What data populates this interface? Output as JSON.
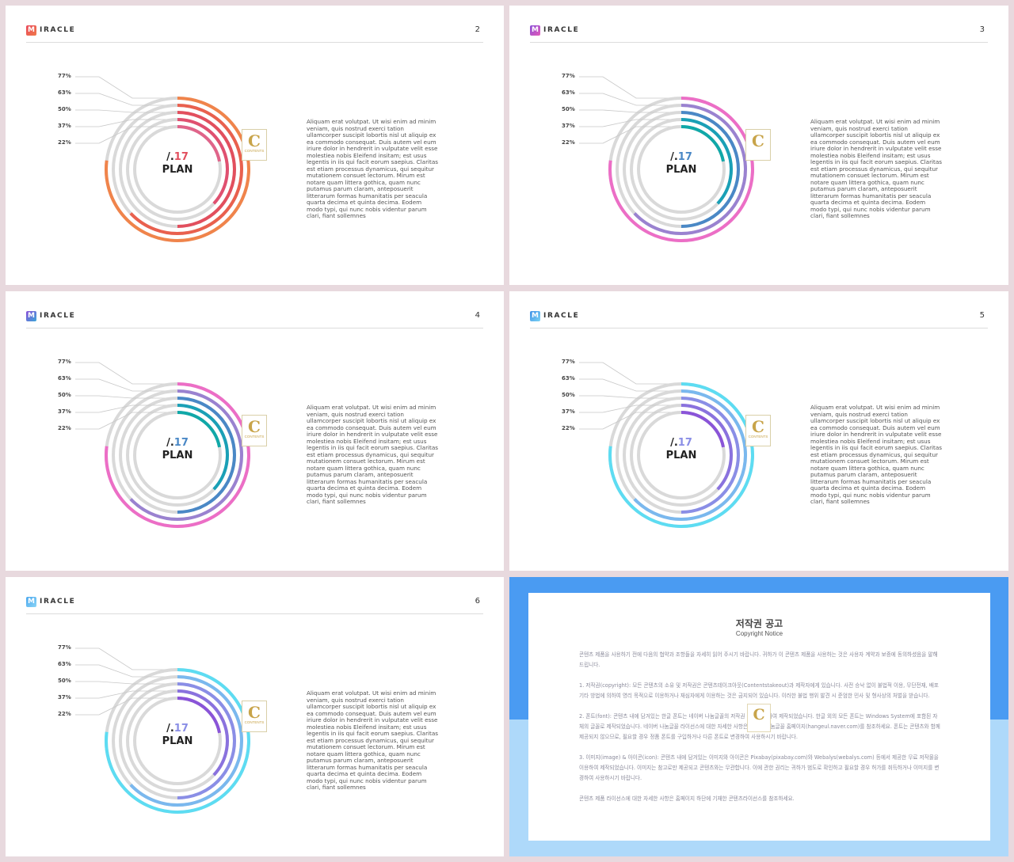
{
  "slides": [
    {
      "brand": "IRACLE",
      "logo_letter": "M",
      "page": "2",
      "center_number": "17",
      "center_label": "PLAN",
      "logo_color": "#e9485b",
      "body": "Aliquam erat volutpat. Ut wisi enim ad minim veniam, quis nostrud exerci tation ullamcorper suscipit lobortis nisl ut aliquip ex ea commodo consequat. Duis autem vel eum iriure dolor in hendrerit in vulputate velit esse molestiea nobis Eleifend insitam; est usus legentis in iis qui facit eorum saepius. Claritas est etiam processus dynamicus, qui sequitur mutationem consuet lectorum. Mirum est notare quam littera gothica, quam nunc putamus parum claram, anteposuerit litterarum formas humanitatis per seacula quarta decima et quinta decima. Eodem modo typi, qui nunc nobis videntur parum clari, fiant sollemnes",
      "stamp_letter": "C",
      "stamp_text": "CONTENTS"
    },
    {
      "brand": "IRACLE",
      "logo_letter": "M",
      "page": "3",
      "center_number": "17",
      "center_label": "PLAN",
      "logo_color": "#8a4fd8",
      "body": "Aliquam erat volutpat. Ut wisi enim ad minim veniam, quis nostrud exerci tation ullamcorper suscipit lobortis nisl ut aliquip ex ea commodo consequat. Duis autem vel eum iriure dolor in hendrerit in vulputate velit esse molestiea nobis Eleifend insitam; est usus legentis in iis qui facit eorum saepius. Claritas est etiam processus dynamicus, qui sequitur mutationem consuet lectorum. Mirum est notare quam littera gothica, quam nunc putamus parum claram, anteposuerit litterarum formas humanitatis per seacula quarta decima et quinta decima. Eodem modo typi, qui nunc nobis videntur parum clari, fiant sollemnes",
      "stamp_letter": "C",
      "stamp_text": ""
    },
    {
      "brand": "IRACLE",
      "logo_letter": "M",
      "page": "4",
      "center_number": "17",
      "center_label": "PLAN",
      "logo_color": "#8a4fd8",
      "body": "Aliquam erat volutpat. Ut wisi enim ad minim veniam, quis nostrud exerci tation ullamcorper suscipit lobortis nisl ut aliquip ex ea commodo consequat. Duis autem vel eum iriure dolor in hendrerit in vulputate velit esse molestiea nobis Eleifend insitam; est usus legentis in iis qui facit eorum saepius. Claritas est etiam processus dynamicus, qui sequitur mutationem consuet lectorum. Mirum est notare quam littera gothica, quam nunc putamus parum claram, anteposuerit litterarum formas humanitatis per seacula quarta decima et quinta decima. Eodem modo typi, qui nunc nobis videntur parum clari, fiant sollemnes",
      "stamp_letter": "C",
      "stamp_text": "CONTENTS"
    },
    {
      "brand": "IRACLE",
      "logo_letter": "M",
      "page": "5",
      "center_number": "17",
      "center_label": "PLAN",
      "logo_color": "#3f8fe6",
      "body": "Aliquam erat volutpat. Ut wisi enim ad minim veniam, quis nostrud exerci tation ullamcorper suscipit lobortis nisl ut aliquip ex ea commodo consequat. Duis autem vel eum iriure dolor in hendrerit in vulputate velit esse molestiea nobis Eleifend insitam; est usus legentis in iis qui facit eorum saepius. Claritas est etiam processus dynamicus, qui sequitur mutationem consuet lectorum. Mirum est notare quam littera gothica, quam nunc putamus parum claram, anteposuerit litterarum formas humanitatis per seacula quarta decima et quinta decima. Eodem modo typi, qui nunc nobis videntur parum clari, fiant sollemnes",
      "stamp_letter": "C",
      "stamp_text": "CONTENTS"
    },
    {
      "brand": "IRACLE",
      "logo_letter": "M",
      "page": "6",
      "center_number": "17",
      "center_label": "PLAN",
      "logo_color": "#4aa7ee",
      "body": "Aliquam erat volutpat. Ut wisi enim ad minim veniam, quis nostrud exerci tation ullamcorper suscipit lobortis nisl ut aliquip ex ea commodo consequat. Duis autem vel eum iriure dolor in hendrerit in vulputate velit esse molestiea nobis Eleifend insitam; est usus legentis in iis qui facit eorum saepius. Claritas est etiam processus dynamicus, qui sequitur mutationem consuet lectorum. Mirum est notare quam littera gothica, quam nunc putamus parum claram, anteposuerit litterarum formas humanitatis per seacula quarta decima et quinta decima. Eodem modo typi, qui nunc nobis videntur parum clari, fiant sollemnes",
      "stamp_letter": "C",
      "stamp_text": "CONTENTS"
    }
  ],
  "chart_data": [
    {
      "type": "radial-bar",
      "slide": "2",
      "categories": [
        "77%",
        "63%",
        "50%",
        "37%",
        "22%"
      ],
      "values": [
        77,
        63,
        50,
        37,
        22
      ],
      "colors": [
        "#f0844b",
        "#e9604e",
        "#e24f5e",
        "#e05070",
        "#e0648a"
      ],
      "track_color": "#d9d9d9"
    },
    {
      "type": "radial-bar",
      "slide": "3",
      "categories": [
        "77%",
        "63%",
        "50%",
        "37%",
        "22%"
      ],
      "values": [
        77,
        63,
        50,
        37,
        22
      ],
      "colors": [
        "#ec6ec6",
        "#9a82d0",
        "#4a88c6",
        "#1aa0b6",
        "#10a8a8"
      ],
      "track_color": "#d9d9d9"
    },
    {
      "type": "radial-bar",
      "slide": "4",
      "categories": [
        "77%",
        "63%",
        "50%",
        "37%",
        "22%"
      ],
      "values": [
        77,
        63,
        50,
        37,
        22
      ],
      "colors": [
        "#ec6ec6",
        "#9a82d0",
        "#4a88c6",
        "#1aa0b6",
        "#10a8a8"
      ],
      "track_color": "#d9d9d9"
    },
    {
      "type": "radial-bar",
      "slide": "5",
      "categories": [
        "77%",
        "63%",
        "50%",
        "37%",
        "22%"
      ],
      "values": [
        77,
        63,
        50,
        37,
        22
      ],
      "colors": [
        "#5ddcf2",
        "#7ab8ee",
        "#8a8ee6",
        "#8a72de",
        "#8a54d8"
      ],
      "track_color": "#d9d9d9"
    },
    {
      "type": "radial-bar",
      "slide": "6",
      "categories": [
        "77%",
        "63%",
        "50%",
        "37%",
        "22%"
      ],
      "values": [
        77,
        63,
        50,
        37,
        22
      ],
      "colors": [
        "#5ddcf2",
        "#7ab8ee",
        "#8a8ee6",
        "#8a72de",
        "#8a54d8"
      ],
      "track_color": "#d9d9d9"
    }
  ],
  "copyright": {
    "title": "저작권 공고",
    "subtitle": "Copyright Notice",
    "intro": "콘텐츠 제품을 사용하기 전에 다음의 협약과 조항들을 자세히 읽어 주시기 바랍니다. 귀하가 이 콘텐츠 제품을 사용하는 것은 사용자 계약과 보증에 동의하셨음을 말해드립니다.",
    "item1": "1. 저작권(copyright): 모든 콘텐츠의 소유 및 저작권은 콘텐츠테이크아웃(Contentstakeout)과 제작자에게 있습니다. 사전 승낙 없이 불법적 이용, 무단전재, 배포 기타 방법에 의하여 영리 목적으로 이용하거나 재심자에게 이용하는 것은 금지되어 있습니다. 이러한 불법 행위 발견 시 준엄한 민사 및 형사상의 처벌을 받습니다.",
    "item2": "2. 폰트(font): 콘텐츠 내에 담겨있는 한글 폰트는 네이버 나눔글꼴의 저작권 정책에 의하여 제작되었습니다. 한글 외의 모든 폰트는 Windows System에 포함된 자체의 글꼴로 제작되었습니다. 네이버 나눔글꼴 라이선스에 대한 자세한 사항은 네이버 나눔글꼴 홈페이지(hangeul.naver.com)를 참조하세요. 폰트는 콘텐츠와 함께 제공되지 않으므로, 필요할 경우 정품 폰트를 구입하거나 다른 폰트로 변경하여 사용하시기 바랍니다.",
    "item3": "3. 이미지(image) & 아이콘(icon): 콘텐츠 내에 담겨있는 이미지와 아이콘은 Pixabay(pixabay.com)와 Webalys(webalys.com) 등에서 제공한 무료 저작물을 이용하여 제작되었습니다. 이미지는 참고로만 제공되고 콘텐츠와는 무관합니다. 이에 관한 권리는 귀하가 범도로 확인하고 필요할 경우 허가를 취득하거나 이미지를 변경하여 사용하시기 바랍니다.",
    "outro": "콘텐츠 제품 라이선스에 대한 자세한 사항은 홈페이지 하단에 기재한 콘텐츠라이선스를 참조하세요.",
    "stamp_letter": "C"
  }
}
